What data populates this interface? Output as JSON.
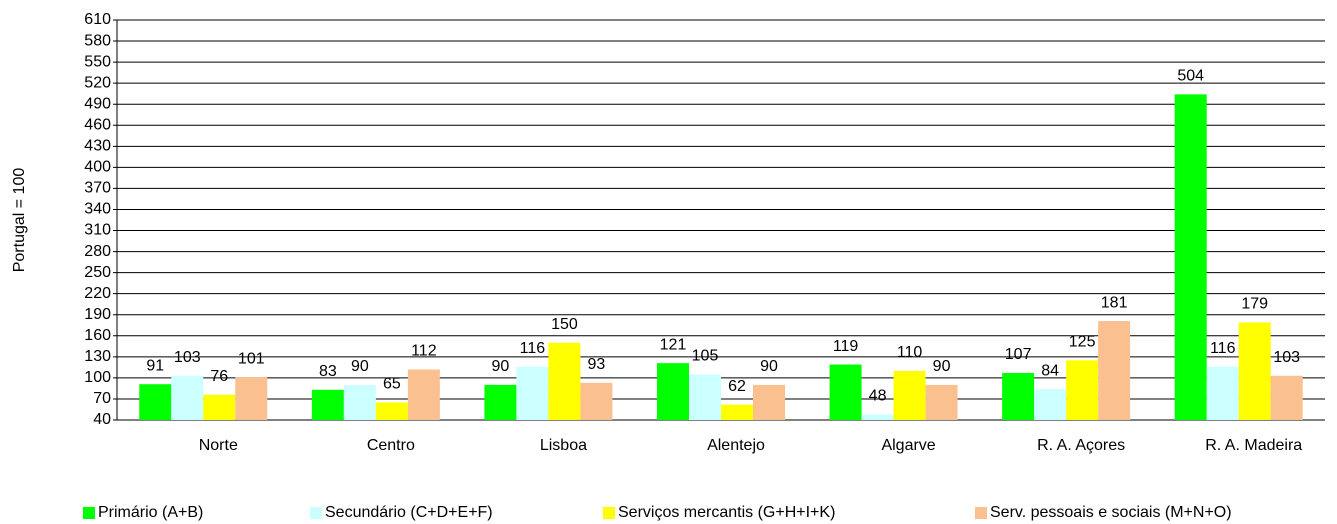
{
  "chart_data": {
    "type": "bar",
    "y_label": "Portugal = 100",
    "categories": [
      "Norte",
      "Centro",
      "Lisboa",
      "Alentejo",
      "Algarve",
      "R. A. Açores",
      "R. A. Madeira"
    ],
    "series": [
      {
        "name": "Primário  (A+B)",
        "color": "#00ff00",
        "values": [
          91,
          83,
          90,
          121,
          119,
          107,
          504
        ]
      },
      {
        "name": "Secundário (C+D+E+F)",
        "color": "#ccffff",
        "values": [
          103,
          90,
          116,
          105,
          48,
          84,
          116
        ]
      },
      {
        "name": "Serviços mercantis (G+H+I+K)",
        "color": "#ffff00",
        "values": [
          76,
          65,
          150,
          62,
          110,
          125,
          179
        ]
      },
      {
        "name": "Serv. pessoais e sociais (M+N+O)",
        "color": "#fac090",
        "values": [
          101,
          112,
          93,
          90,
          90,
          181,
          103
        ]
      }
    ],
    "ylim": [
      40,
      610
    ],
    "yticks": [
      40,
      70,
      100,
      130,
      160,
      190,
      220,
      250,
      280,
      310,
      340,
      370,
      400,
      430,
      460,
      490,
      520,
      550,
      580,
      610
    ],
    "grid": true,
    "legend": "bottom"
  }
}
